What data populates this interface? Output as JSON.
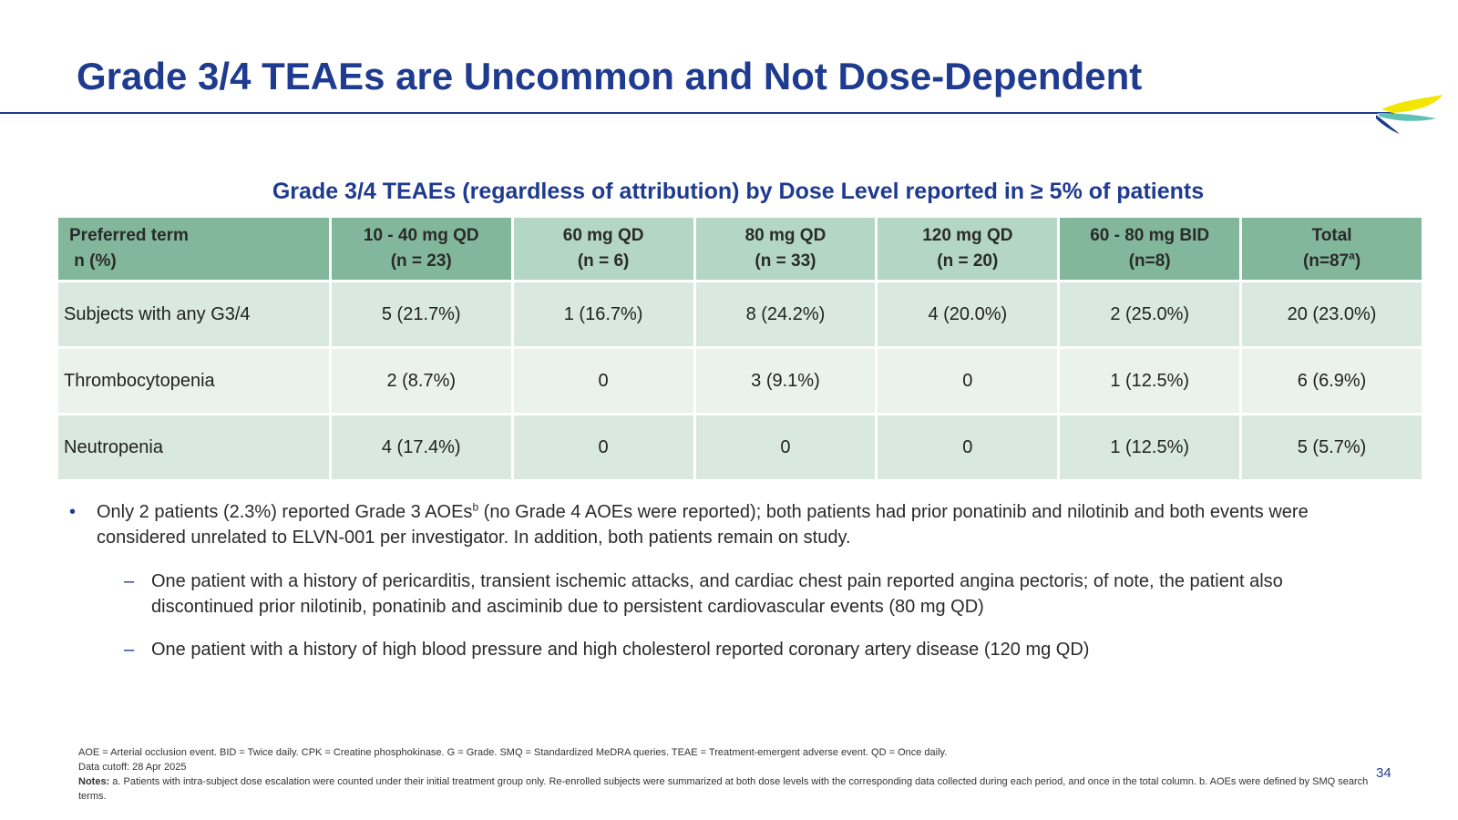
{
  "slide": {
    "title": "Grade 3/4 TEAEs are Uncommon and Not Dose-Dependent",
    "page_number": "34"
  },
  "table": {
    "title": "Grade 3/4 TEAEs (regardless of attribution) by Dose Level reported in ≥ 5% of patients",
    "header": {
      "preferred_term_line1": "Preferred term",
      "preferred_term_line2": " n (%)",
      "cols": [
        {
          "line1": "10 - 40 mg QD",
          "line2": "(n = 23)"
        },
        {
          "line1": "60 mg QD",
          "line2": "(n = 6)"
        },
        {
          "line1": "80 mg QD",
          "line2": "(n = 33)"
        },
        {
          "line1": "120 mg QD",
          "line2": "(n = 20)"
        },
        {
          "line1": "60 - 80 mg BID",
          "line2": "(n=8)"
        },
        {
          "line1": "Total",
          "line2_pre": "(n=87",
          "line2_sup": "a",
          "line2_post": ")"
        }
      ]
    },
    "rows": [
      {
        "label": "Subjects with any G3/4",
        "cells": [
          "5 (21.7%)",
          "1 (16.7%)",
          "8 (24.2%)",
          "4 (20.0%)",
          "2 (25.0%)",
          "20 (23.0%)"
        ]
      },
      {
        "label": "Thrombocytopenia",
        "cells": [
          "2 (8.7%)",
          "0",
          "3 (9.1%)",
          "0",
          "1 (12.5%)",
          "6 (6.9%)"
        ]
      },
      {
        "label": "Neutropenia",
        "cells": [
          "4 (17.4%)",
          "0",
          "0",
          "0",
          "1 (12.5%)",
          "5 (5.7%)"
        ]
      }
    ]
  },
  "bullets": {
    "main_pre": "Only 2 patients (2.3%) reported Grade 3 AOEs",
    "main_sup": "b",
    "main_post": " (no Grade 4 AOEs were reported); both patients had prior ponatinib and nilotinib and both events were considered unrelated to ELVN-001 per investigator. In addition, both patients remain on study.",
    "sub": [
      "One patient with a history of pericarditis, transient ischemic attacks, and cardiac chest pain reported angina pectoris; of note, the patient also discontinued prior nilotinib, ponatinib and asciminib due to persistent cardiovascular events (80 mg QD)",
      "One patient with a history of high blood pressure and high cholesterol reported coronary artery disease (120 mg QD)"
    ],
    "bullet_char": "•",
    "dash_char": "–"
  },
  "footnotes": {
    "abbreviations": "AOE = Arterial occlusion event. BID = Twice daily. CPK = Creatine phosphokinase.  G = Grade. SMQ = Standardized MeDRA queries. TEAE = Treatment-emergent  adverse event.  QD = Once daily.",
    "data_cutoff": "Data cutoff: 28 Apr 2025",
    "notes_label": "Notes:",
    "notes_text": " a. Patients with intra-subject dose escalation were counted under their initial treatment group only. Re-enrolled subjects were summarized at both dose levels with the corresponding data collected during each period, and once in the total column. b. AOEs were defined by SMQ search terms."
  },
  "colors": {
    "title_blue": "#1f3b8f",
    "header_dark_green": "#82b79c",
    "header_light_green": "#b4d6c4",
    "row_a": "#d9e8e0",
    "row_b": "#ebf2ee",
    "logo_yellow": "#f2e600",
    "logo_teal": "#5fc2b5",
    "logo_navy": "#1f3b8f"
  },
  "icons": {
    "logo": "company-logo-swoosh"
  }
}
